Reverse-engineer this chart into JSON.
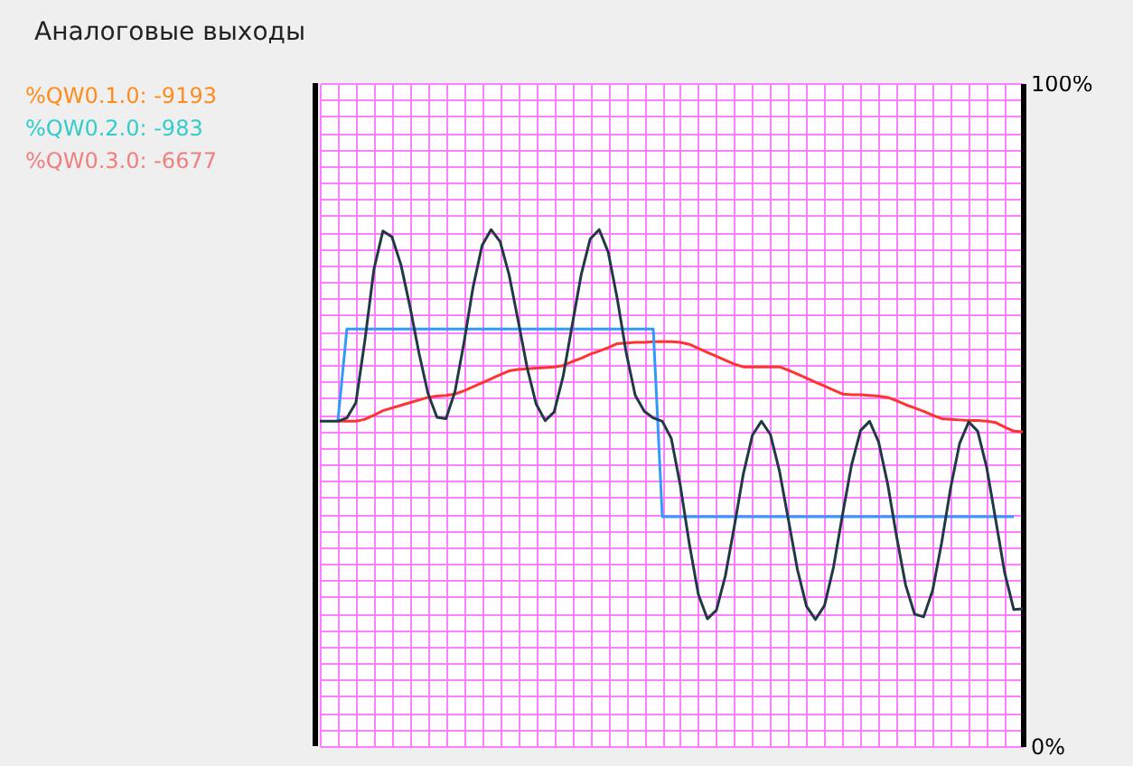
{
  "chart_data": {
    "type": "line",
    "title": "Аналоговые выходы",
    "annotations": [
      "%QW0.1.0: -9193",
      "%QW0.2.0: -983",
      "%QW0.3.0: -6677"
    ],
    "categories": [
      null,
      null,
      null,
      null,
      null,
      null,
      null,
      null,
      null,
      null,
      null,
      null,
      null,
      null,
      null,
      null,
      null,
      null,
      null,
      null,
      null,
      null,
      null,
      null,
      null,
      null,
      null,
      null,
      null,
      null,
      null,
      null,
      null,
      null,
      null,
      null,
      null,
      null,
      null,
      null,
      null,
      null,
      null,
      null,
      null,
      null,
      null,
      null,
      null,
      null,
      null,
      null,
      null,
      null,
      null,
      null,
      null,
      null,
      null,
      null,
      null,
      null,
      null,
      null,
      null,
      null,
      null,
      null,
      null,
      null,
      null,
      null,
      null,
      null,
      null,
      null,
      null,
      null,
      null
    ],
    "series": [
      {
        "color": "#ff3333",
        "values": [
          null,
          null,
          49,
          49,
          49,
          49.3,
          49.9,
          50.6,
          51.0,
          51.4,
          51.8,
          52.2,
          52.6,
          52.8,
          52.9,
          53.1,
          53.6,
          54.2,
          54.8,
          55.4,
          56.0,
          56.6,
          56.8,
          56.9,
          57.0,
          57.1,
          57.2,
          57.4,
          58.0,
          58.5,
          59.1,
          59.6,
          60.1,
          60.7,
          60.8,
          60.9,
          60.9,
          61.0,
          61.0,
          61.0,
          60.9,
          60.6,
          60.0,
          59.4,
          58.8,
          58.2,
          57.6,
          57.2,
          57.2,
          57.2,
          57.2,
          57.2,
          56.7,
          56.1,
          55.5,
          54.9,
          54.3,
          53.7,
          53.1,
          53.0,
          53.0,
          52.9,
          52.8,
          52.6,
          52.1,
          51.5,
          51.0,
          50.5,
          49.9,
          49.4,
          49.3,
          49.2,
          49.1,
          49.1,
          49.0,
          48.8,
          48.1,
          47.5,
          47.4
        ]
      },
      {
        "color": "#3399ff",
        "values": [
          null,
          null,
          49,
          62.9,
          62.9,
          62.9,
          62.9,
          62.9,
          62.9,
          62.9,
          62.9,
          62.9,
          62.9,
          62.9,
          62.9,
          62.9,
          62.9,
          62.9,
          62.9,
          62.9,
          62.9,
          62.9,
          62.9,
          62.9,
          62.9,
          62.9,
          62.9,
          62.9,
          62.9,
          62.9,
          62.9,
          62.9,
          62.9,
          62.9,
          62.9,
          62.9,
          62.9,
          62.9,
          34.6,
          34.6,
          34.6,
          34.6,
          34.6,
          34.6,
          34.6,
          34.6,
          34.6,
          34.6,
          34.6,
          34.6,
          34.6,
          34.6,
          34.6,
          34.6,
          34.6,
          34.6,
          34.6,
          34.6,
          34.6,
          34.6,
          34.6,
          34.6,
          34.6,
          34.6,
          34.6,
          34.6,
          34.6,
          34.6,
          34.6,
          34.6,
          34.6,
          34.6,
          34.6,
          34.6,
          34.6,
          34.6,
          34.6,
          34.6,
          null
        ]
      },
      {
        "color": "#1f3a44",
        "values": [
          49,
          49,
          49,
          49.5,
          51.8,
          61.2,
          71.9,
          77.7,
          76.8,
          72.6,
          66.3,
          59.3,
          53.2,
          49.6,
          49.4,
          53.5,
          60.9,
          69.2,
          75.5,
          77.9,
          76.1,
          71.1,
          64.2,
          57.1,
          51.6,
          49.1,
          50.4,
          55.8,
          63.5,
          71.1,
          76.5,
          77.9,
          74.5,
          67.5,
          59.3,
          52.9,
          50.5,
          49.5,
          49.0,
          46.4,
          39.3,
          30.5,
          22.9,
          19.2,
          20.5,
          25.7,
          33.2,
          41.1,
          46.9,
          49.0,
          47.0,
          41.5,
          34.1,
          26.6,
          21.1,
          19.1,
          21.2,
          27.0,
          34.9,
          42.4,
          47.6,
          49.0,
          45.9,
          39.6,
          31.6,
          24.3,
          19.9,
          19.5,
          23.5,
          30.7,
          39.0,
          45.7,
          48.9,
          47.5,
          42.0,
          34.1,
          26.1,
          20.6,
          20.7
        ]
      }
    ],
    "ylim": [
      0,
      100
    ],
    "yticks": [
      {
        "value": 0,
        "label": "0%"
      },
      {
        "value": 2.5,
        "label": null
      },
      {
        "value": 5,
        "label": null
      },
      {
        "value": 7.5,
        "label": null
      },
      {
        "value": 10,
        "label": null
      },
      {
        "value": 12.5,
        "label": null
      },
      {
        "value": 15,
        "label": null
      },
      {
        "value": 17.5,
        "label": null
      },
      {
        "value": 20,
        "label": null
      },
      {
        "value": 22.5,
        "label": null
      },
      {
        "value": 25,
        "label": null
      },
      {
        "value": 27.5,
        "label": null
      },
      {
        "value": 30,
        "label": null
      },
      {
        "value": 32.5,
        "label": null
      },
      {
        "value": 35,
        "label": null
      },
      {
        "value": 37.5,
        "label": null
      },
      {
        "value": 40,
        "label": null
      },
      {
        "value": 42.5,
        "label": null
      },
      {
        "value": 45,
        "label": null
      },
      {
        "value": 47.5,
        "label": null
      },
      {
        "value": 50,
        "label": null
      },
      {
        "value": 52.5,
        "label": null
      },
      {
        "value": 55,
        "label": null
      },
      {
        "value": 57.5,
        "label": null
      },
      {
        "value": 60,
        "label": null
      },
      {
        "value": 62.5,
        "label": null
      },
      {
        "value": 65,
        "label": null
      },
      {
        "value": 67.5,
        "label": null
      },
      {
        "value": 70,
        "label": null
      },
      {
        "value": 72.5,
        "label": null
      },
      {
        "value": 75,
        "label": null
      },
      {
        "value": 77.5,
        "label": null
      },
      {
        "value": 80,
        "label": null
      },
      {
        "value": 82.5,
        "label": null
      },
      {
        "value": 85,
        "label": null
      },
      {
        "value": 87.5,
        "label": null
      },
      {
        "value": 90,
        "label": null
      },
      {
        "value": 92.5,
        "label": null
      },
      {
        "value": 95,
        "label": null
      },
      {
        "value": 97.5,
        "label": null
      },
      {
        "value": 100,
        "label": "100%"
      }
    ],
    "grid": true,
    "marker": "none",
    "line_style": "solid"
  }
}
